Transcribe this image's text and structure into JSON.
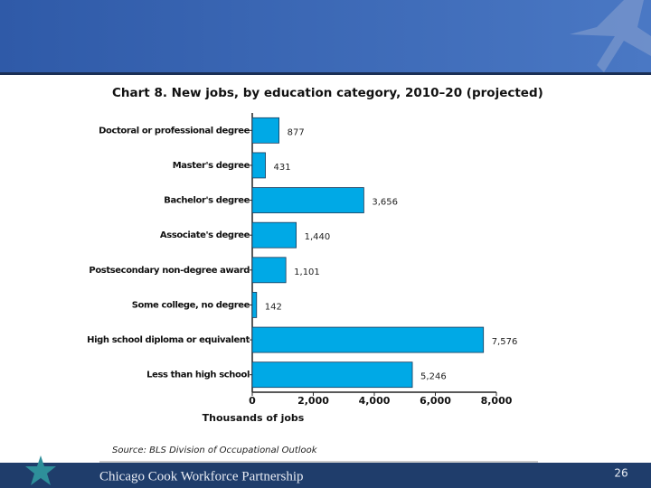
{
  "chart_data": {
    "type": "bar",
    "orientation": "horizontal",
    "title": "Chart 8. New jobs, by education category, 2010–20 (projected)",
    "categories": [
      "Doctoral or professional degree",
      "Master's degree",
      "Bachelor's degree",
      "Associate's degree",
      "Postsecondary non-degree award",
      "Some college, no degree",
      "High school diploma or equivalent",
      "Less than high school"
    ],
    "values": [
      877,
      431,
      3656,
      1440,
      1101,
      142,
      7576,
      5246
    ],
    "value_labels": [
      "877",
      "431",
      "3,656",
      "1,440",
      "1,101",
      "142",
      "7,576",
      "5,246"
    ],
    "color": "#00a9e6",
    "xlim": [
      0,
      8000
    ],
    "xticks": [
      0,
      {
        "value": 2000,
        "label": "2,000"
      },
      {
        "value": 4000,
        "label": "4,000"
      },
      {
        "value": 6000,
        "label": "6,000"
      },
      {
        "value": 8000,
        "label": "8,000"
      }
    ],
    "xlabel": "Thousands of jobs",
    "source": "Source: BLS Division of Occupational Outlook"
  },
  "footer": {
    "organization": "Chicago Cook Workforce Partnership",
    "page_number": "26"
  }
}
